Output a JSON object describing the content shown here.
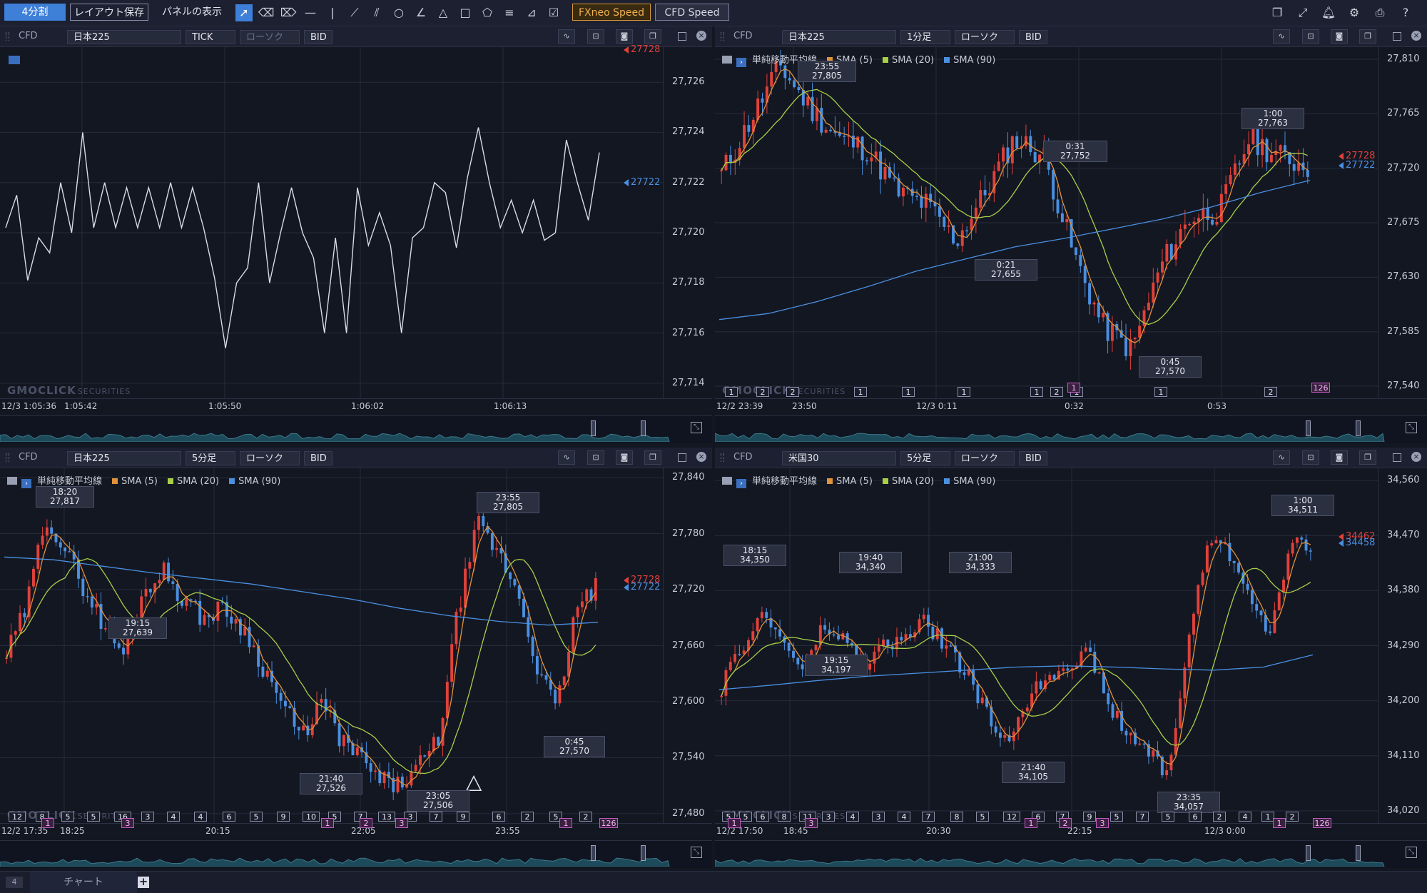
{
  "toolbar": {
    "split_label": "4分割",
    "save_layout_label": "レイアウト保存",
    "panel_display_label": "パネルの表示",
    "fxneo_label": "FXneo Speed",
    "cfd_label": "CFD Speed",
    "tools": [
      "cursor-icon",
      "eraser-icon",
      "eraser-all-icon",
      "hline-icon",
      "vline-icon",
      "trendline-icon",
      "channel-icon",
      "circle-icon",
      "angle-icon",
      "triangle-icon",
      "rectangle-icon",
      "pentagon-icon",
      "fibonacci-icon",
      "gann-icon",
      "checkbox-icon"
    ],
    "right_icons": [
      "window-icon",
      "fullscreen-icon",
      "bell-icon",
      "gear-icon",
      "print-icon",
      "help-icon"
    ]
  },
  "colors": {
    "up": "#e0413a",
    "down": "#4a8fe0",
    "sma5": "#e0923a",
    "sma20": "#a8d048",
    "sma90": "#4a8fe0",
    "bid_tag": "#4a8fe0",
    "ask_tag": "#e0413a"
  },
  "panels": [
    {
      "id": "tl",
      "category": "CFD",
      "symbol": "日本225",
      "timeframe": "TICK",
      "chart_type": "ローソク",
      "price_type": "BID",
      "y_ticks": [
        "27,726",
        "27,724",
        "27,722",
        "27,720",
        "27,718",
        "27,716",
        "27,714"
      ],
      "y_range": [
        27713.4,
        27727.4
      ],
      "ask_tag": "27728",
      "bid_tag": "27722",
      "x_labels": [
        "12/3 1:05:36",
        "1:05:42",
        "1:05:50",
        "1:06:02",
        "1:06:13"
      ],
      "watermark": "GMOCLICK",
      "watermark_sub": "SECURITIES"
    },
    {
      "id": "tr",
      "category": "CFD",
      "symbol": "日本225",
      "timeframe": "1分足",
      "chart_type": "ローソク",
      "price_type": "BID",
      "legend_title": "単純移動平均線",
      "legend": [
        "SMA (5)",
        "SMA (20)",
        "SMA (90)"
      ],
      "y_ticks": [
        "27,810",
        "27,765",
        "27,720",
        "27,675",
        "27,630",
        "27,585",
        "27,540"
      ],
      "y_range": [
        27530,
        27820
      ],
      "ask_tag": "27728",
      "bid_tag": "27722",
      "annotations": [
        {
          "time": "23:55",
          "price": "27,805"
        },
        {
          "time": "0:31",
          "price": "27,752"
        },
        {
          "time": "0:21",
          "price": "27,655"
        },
        {
          "time": "1:00",
          "price": "27,763"
        },
        {
          "time": "0:45",
          "price": "27,570"
        }
      ],
      "counts": [
        "1",
        "2",
        "2",
        "1",
        "1",
        "1",
        "1",
        "2",
        "1",
        "1",
        "2"
      ],
      "pink_counts": [
        "1",
        "126"
      ],
      "x_labels": [
        "12/2 23:39",
        "23:50",
        "12/3 0:11",
        "0:32",
        "0:53"
      ],
      "watermark": "GMOCLICK",
      "watermark_sub": "SECURITIES"
    },
    {
      "id": "bl",
      "category": "CFD",
      "symbol": "日本225",
      "timeframe": "5分足",
      "chart_type": "ローソク",
      "price_type": "BID",
      "legend_title": "単純移動平均線",
      "legend": [
        "SMA (5)",
        "SMA (20)",
        "SMA (90)"
      ],
      "y_ticks": [
        "27,840",
        "27,780",
        "27,720",
        "27,660",
        "27,600",
        "27,540",
        "27,480"
      ],
      "y_range": [
        27470,
        27850
      ],
      "ask_tag": "27728",
      "bid_tag": "27722",
      "annotations": [
        {
          "time": "18:20",
          "price": "27,817"
        },
        {
          "time": "19:15",
          "price": "27,639"
        },
        {
          "time": "23:55",
          "price": "27,805"
        },
        {
          "time": "21:40",
          "price": "27,526"
        },
        {
          "time": "23:05",
          "price": "27,506"
        },
        {
          "time": "0:45",
          "price": "27,570"
        }
      ],
      "counts": [
        "12",
        "8",
        "5",
        "5",
        "16",
        "3",
        "4",
        "4",
        "6",
        "5",
        "9",
        "10",
        "5",
        "7",
        "13",
        "3",
        "7",
        "9",
        "6",
        "2",
        "5",
        "2"
      ],
      "pink_counts": [
        "1",
        "3",
        "1",
        "2",
        "3",
        "1",
        "126"
      ],
      "x_labels": [
        "12/2 17:35",
        "18:25",
        "20:15",
        "22:05",
        "23:55"
      ],
      "watermark": "GMOCLICK",
      "watermark_sub": "SECURITIES"
    },
    {
      "id": "br",
      "category": "CFD",
      "symbol": "米国30",
      "timeframe": "5分足",
      "chart_type": "ローソク",
      "price_type": "BID",
      "legend_title": "単純移動平均線",
      "legend": [
        "SMA (5)",
        "SMA (20)",
        "SMA (90)"
      ],
      "y_ticks": [
        "34,560",
        "34,470",
        "34,380",
        "34,290",
        "34,200",
        "34,110",
        "34,020"
      ],
      "y_range": [
        34000,
        34580
      ],
      "ask_tag": "34462",
      "bid_tag": "34458",
      "annotations": [
        {
          "time": "18:15",
          "price": "34,350"
        },
        {
          "time": "19:40",
          "price": "34,340"
        },
        {
          "time": "21:00",
          "price": "34,333"
        },
        {
          "time": "1:00",
          "price": "34,511"
        },
        {
          "time": "19:15",
          "price": "34,197"
        },
        {
          "time": "21:40",
          "price": "34,105"
        },
        {
          "time": "23:35",
          "price": "34,057"
        }
      ],
      "counts": [
        "5",
        "5",
        "6",
        "8",
        "11",
        "3",
        "4",
        "3",
        "4",
        "7",
        "8",
        "5",
        "12",
        "6",
        "7",
        "9",
        "5",
        "7",
        "5",
        "6",
        "2",
        "4",
        "1",
        "2"
      ],
      "pink_counts": [
        "1",
        "3",
        "1",
        "2",
        "3",
        "1",
        "126"
      ],
      "x_labels": [
        "12/2 17:50",
        "18:45",
        "20:30",
        "22:15",
        "12/3 0:00"
      ],
      "watermark": "GMOCLICK",
      "watermark_sub": "SECURITIES"
    }
  ],
  "chart_data": [
    {
      "type": "line",
      "series": [
        {
          "values": [
            27720.2,
            27721.5,
            27718.1,
            27719.8,
            27719.2,
            27722.0,
            27720.0,
            27724.0,
            27720.2,
            27722.0,
            27720.2,
            27721.8,
            27720.2,
            27721.8,
            27720.2,
            27722.0,
            27720.2,
            27721.8,
            27720.2,
            27718.2,
            27715.4,
            27718.0,
            27718.6,
            27722.0,
            27718.0,
            27720.0,
            27721.8,
            27720.0,
            27719.0,
            27716.0,
            27719.8,
            27716.0,
            27721.8,
            27719.5,
            27720.8,
            27719.5,
            27716.0,
            27719.8,
            27720.2,
            27722.0,
            27721.6,
            27719.4,
            27722.2,
            27724.2,
            27722.0,
            27720.2,
            27721.3,
            27720.0,
            27721.3,
            27719.7,
            27720.0,
            27723.7,
            27722.0,
            27720.5,
            27723.2
          ]
        }
      ]
    },
    {
      "type": "candlestick",
      "ylim": [
        27530,
        27820
      ]
    },
    {
      "type": "candlestick",
      "ylim": [
        27470,
        27850
      ]
    },
    {
      "type": "candlestick",
      "ylim": [
        34000,
        34580
      ]
    }
  ]
}
